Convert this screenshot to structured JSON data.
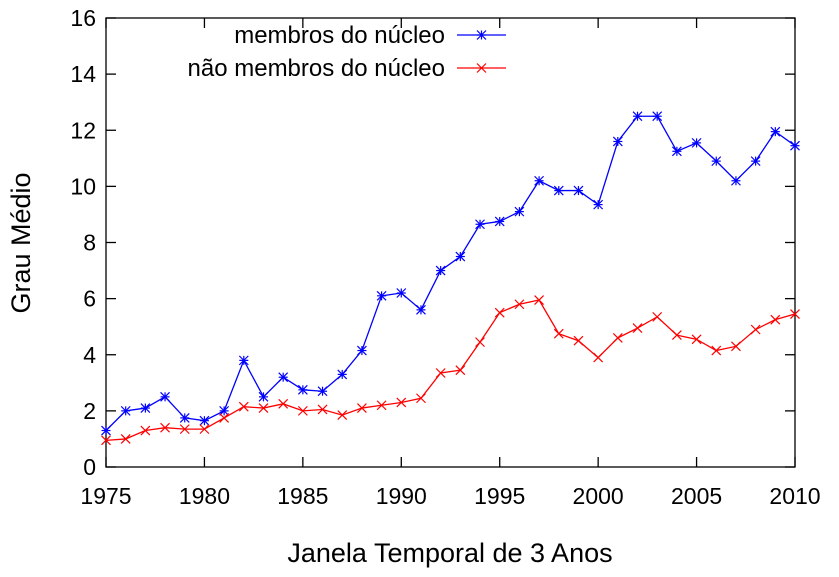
{
  "chart_data": {
    "type": "line",
    "title": "",
    "xlabel": "Janela Temporal de 3 Anos",
    "ylabel": "Grau Médio",
    "xlim": [
      1975,
      2010
    ],
    "ylim": [
      0,
      16
    ],
    "xticks": [
      1975,
      1980,
      1985,
      1990,
      1995,
      2000,
      2005,
      2010
    ],
    "yticks": [
      0,
      2,
      4,
      6,
      8,
      10,
      12,
      14,
      16
    ],
    "grid": false,
    "legend_position": "top-left",
    "x": [
      1975,
      1976,
      1977,
      1978,
      1979,
      1980,
      1981,
      1982,
      1983,
      1984,
      1985,
      1986,
      1987,
      1988,
      1989,
      1990,
      1991,
      1992,
      1993,
      1994,
      1995,
      1996,
      1997,
      1998,
      1999,
      2000,
      2001,
      2002,
      2003,
      2004,
      2005,
      2006,
      2007,
      2008,
      2009,
      2010
    ],
    "series": [
      {
        "name": "membros do núcleo",
        "color": "#0000ff",
        "marker": "asterisk",
        "values": [
          1.3,
          2.0,
          2.1,
          2.5,
          1.75,
          1.65,
          2.0,
          3.8,
          2.5,
          3.2,
          2.75,
          2.7,
          3.3,
          4.15,
          6.1,
          6.2,
          5.6,
          7.0,
          7.5,
          8.65,
          8.75,
          9.1,
          10.2,
          9.85,
          9.85,
          9.35,
          11.6,
          12.5,
          12.5,
          11.25,
          11.55,
          10.9,
          10.2,
          10.9,
          11.95,
          11.45
        ]
      },
      {
        "name": "não membros do núcleo",
        "color": "#ff0000",
        "marker": "x",
        "values": [
          0.95,
          1.0,
          1.3,
          1.4,
          1.35,
          1.35,
          1.75,
          2.15,
          2.1,
          2.25,
          2.0,
          2.05,
          1.85,
          2.1,
          2.2,
          2.3,
          2.45,
          3.35,
          3.45,
          4.45,
          5.5,
          5.8,
          5.95,
          4.75,
          4.5,
          3.9,
          4.6,
          4.95,
          5.35,
          4.7,
          4.55,
          4.15,
          4.3,
          4.9,
          5.25,
          5.45
        ]
      }
    ]
  }
}
